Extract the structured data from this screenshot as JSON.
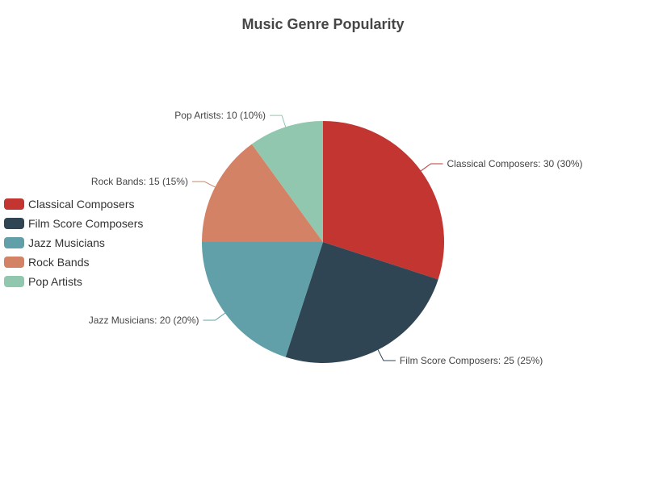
{
  "chart_data": {
    "type": "pie",
    "title": "Music Genre Popularity",
    "legend_position": "left",
    "categories": [
      "Classical Composers",
      "Film Score Composers",
      "Jazz Musicians",
      "Rock Bands",
      "Pop Artists"
    ],
    "values": [
      30,
      25,
      20,
      15,
      10
    ],
    "percent_labels": [
      "30%",
      "25%",
      "20%",
      "15%",
      "10%"
    ],
    "colors": [
      "#c23531",
      "#2f4554",
      "#61a0a8",
      "#d48265",
      "#91c7ae"
    ],
    "slice_labels": [
      "Classical Composers: 30 (30%)",
      "Film Score Composers: 25 (25%)",
      "Jazz Musicians: 20 (20%)",
      "Rock Bands: 15 (15%)",
      "Pop Artists: 10 (10%)"
    ]
  }
}
